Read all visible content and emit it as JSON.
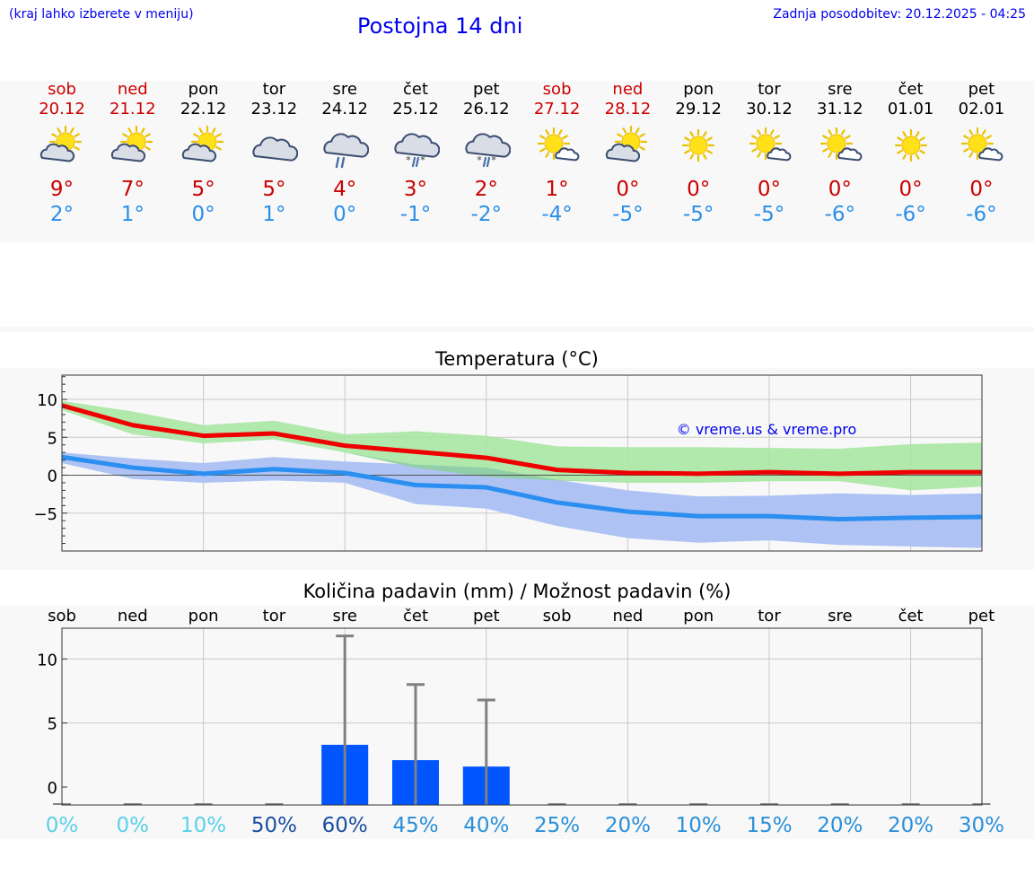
{
  "header": {
    "hint": "(kraj lahko izberete v meniju)",
    "title": "Postojna 14 dni",
    "updated": "Zadnja posodobitev: 20.12.2025 - 04:25"
  },
  "colors": {
    "link": "#0000ee",
    "max_temp": "#cc0000",
    "min_temp": "#2a8fe8",
    "max_band": "#a8e6a3",
    "min_band": "#aec3f3",
    "max_line": "#ee0000",
    "min_line": "#2a8ff0",
    "precip_bar": "#0055ff",
    "whisker": "#808080"
  },
  "days": [
    {
      "name": "sob",
      "date": "20.12",
      "weekend": true,
      "icon": "sun-cloud-icon",
      "max": "9°",
      "min": "2°"
    },
    {
      "name": "ned",
      "date": "21.12",
      "weekend": true,
      "icon": "sun-cloud-icon",
      "max": "7°",
      "min": "1°"
    },
    {
      "name": "pon",
      "date": "22.12",
      "weekend": false,
      "icon": "sun-cloud-icon",
      "max": "5°",
      "min": "0°"
    },
    {
      "name": "tor",
      "date": "23.12",
      "weekend": false,
      "icon": "cloudy-icon",
      "max": "5°",
      "min": "1°"
    },
    {
      "name": "sre",
      "date": "24.12",
      "weekend": false,
      "icon": "rain-icon",
      "max": "4°",
      "min": "0°"
    },
    {
      "name": "čet",
      "date": "25.12",
      "weekend": false,
      "icon": "sleet-icon",
      "max": "3°",
      "min": "-1°"
    },
    {
      "name": "pet",
      "date": "26.12",
      "weekend": false,
      "icon": "sleet-icon",
      "max": "2°",
      "min": "-2°"
    },
    {
      "name": "sob",
      "date": "27.12",
      "weekend": true,
      "icon": "sun-small-cloud-icon",
      "max": "1°",
      "min": "-4°"
    },
    {
      "name": "ned",
      "date": "28.12",
      "weekend": true,
      "icon": "sun-cloud-icon",
      "max": "0°",
      "min": "-5°"
    },
    {
      "name": "pon",
      "date": "29.12",
      "weekend": false,
      "icon": "sun-icon",
      "max": "0°",
      "min": "-5°"
    },
    {
      "name": "tor",
      "date": "30.12",
      "weekend": false,
      "icon": "sun-small-cloud-icon",
      "max": "0°",
      "min": "-5°"
    },
    {
      "name": "sre",
      "date": "31.12",
      "weekend": false,
      "icon": "sun-small-cloud-icon",
      "max": "0°",
      "min": "-6°"
    },
    {
      "name": "čet",
      "date": "01.01",
      "weekend": false,
      "icon": "sun-icon",
      "max": "0°",
      "min": "-6°"
    },
    {
      "name": "pet",
      "date": "02.01",
      "weekend": false,
      "icon": "sun-small-cloud-icon",
      "max": "0°",
      "min": "-6°"
    }
  ],
  "chart_data": [
    {
      "type": "line",
      "title": "Temperatura (°C)",
      "xlabel": "",
      "ylabel": "",
      "ylim": [
        -10,
        13.2
      ],
      "yticks": [
        10,
        5,
        0,
        -5
      ],
      "ytick_labels": [
        "10",
        "5",
        "0",
        "−5"
      ],
      "x": [
        0,
        1,
        2,
        3,
        4,
        5,
        6,
        7,
        8,
        9,
        10,
        11,
        12,
        13
      ],
      "watermark": "© vreme.us & vreme.pro",
      "grid": true,
      "series": [
        {
          "name": "max",
          "values": [
            9.2,
            6.6,
            5.2,
            5.5,
            3.9,
            3.1,
            2.3,
            0.7,
            0.3,
            0.2,
            0.4,
            0.2,
            0.4,
            0.4
          ]
        },
        {
          "name": "min",
          "values": [
            2.4,
            1.0,
            0.2,
            0.8,
            0.3,
            -1.3,
            -1.6,
            -3.6,
            -4.8,
            -5.4,
            -5.4,
            -5.8,
            -5.6,
            -5.5
          ]
        }
      ],
      "bands": [
        {
          "name": "max_range",
          "lower": [
            8.6,
            5.4,
            4.2,
            4.7,
            3.0,
            1.0,
            -0.2,
            -0.7,
            -1.0,
            -1.0,
            -0.8,
            -0.8,
            -2.0,
            -1.5
          ],
          "upper": [
            9.8,
            8.4,
            6.6,
            7.2,
            5.4,
            5.8,
            5.2,
            3.8,
            3.7,
            3.7,
            3.6,
            3.5,
            4.1,
            4.3
          ]
        },
        {
          "name": "min_range",
          "lower": [
            1.6,
            -0.5,
            -1.0,
            -0.7,
            -1.0,
            -3.8,
            -4.4,
            -6.7,
            -8.3,
            -8.9,
            -8.6,
            -9.2,
            -9.4,
            -9.6
          ],
          "upper": [
            3.0,
            2.2,
            1.6,
            2.4,
            1.8,
            1.4,
            1.0,
            -0.6,
            -2.0,
            -2.8,
            -2.7,
            -2.4,
            -2.6,
            -2.4
          ]
        }
      ]
    },
    {
      "type": "bar",
      "title": "Količina padavin (mm) / Možnost padavin (%)",
      "categories": [
        "sob",
        "ned",
        "pon",
        "tor",
        "sre",
        "čet",
        "pet",
        "sob",
        "ned",
        "pon",
        "tor",
        "sre",
        "čet",
        "pet"
      ],
      "ylim": [
        -1.4,
        12.4
      ],
      "yticks": [
        10,
        5,
        0
      ],
      "values": [
        0,
        0,
        0,
        0,
        3.3,
        2.1,
        1.6,
        0,
        0,
        0,
        0,
        0,
        0,
        0
      ],
      "error_upper": [
        0,
        0,
        0,
        0,
        11.8,
        8.0,
        6.8,
        0,
        0,
        0,
        0,
        0,
        0,
        0
      ],
      "probability": [
        "0%",
        "0%",
        "10%",
        "50%",
        "60%",
        "45%",
        "40%",
        "25%",
        "20%",
        "10%",
        "15%",
        "20%",
        "20%",
        "30%"
      ],
      "probability_colors": [
        "#5ad0e8",
        "#5ad0e8",
        "#5ad0e8",
        "#1a4fa0",
        "#1a4fa0",
        "#2a8fd8",
        "#2a8fd8",
        "#2a8fd8",
        "#2a8fd8",
        "#2a8fd8",
        "#2a8fd8",
        "#2a8fd8",
        "#2a8fd8",
        "#2a8fd8"
      ],
      "grid": true
    }
  ]
}
